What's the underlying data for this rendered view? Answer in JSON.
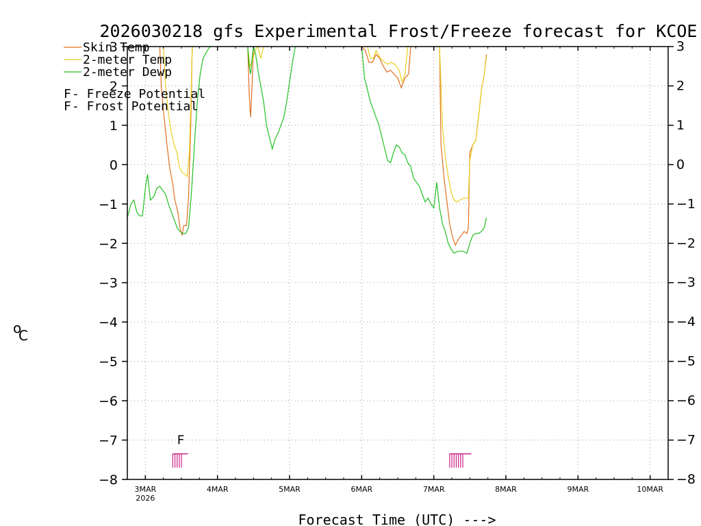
{
  "chart_data": {
    "type": "line",
    "title": "2026030218 gfs Experimental Frost/Freeze forecast for KCOE",
    "ylabel_unit": "°C",
    "ylabel_prefix": "o",
    "ylabel_main": "C",
    "xlabel": "Forecast Time (UTC) --->",
    "ylim": [
      -8,
      3
    ],
    "yticks": [
      3,
      2,
      1,
      0,
      -1,
      -2,
      -3,
      -4,
      -5,
      -6,
      -7,
      -8
    ],
    "ytick_labels": [
      "3",
      "2",
      "1",
      "0",
      "−1",
      "−2",
      "−3",
      "−4",
      "−5",
      "−6",
      "−7",
      "−8"
    ],
    "xlim": [
      -0.25,
      7.25
    ],
    "xticks": [
      {
        "x": 0,
        "label": "3MAR",
        "sub": "2026"
      },
      {
        "x": 1,
        "label": "4MAR",
        "sub": ""
      },
      {
        "x": 2,
        "label": "5MAR",
        "sub": ""
      },
      {
        "x": 3,
        "label": "6MAR",
        "sub": ""
      },
      {
        "x": 4,
        "label": "7MAR",
        "sub": ""
      },
      {
        "x": 5,
        "label": "8MAR",
        "sub": ""
      },
      {
        "x": 6,
        "label": "9MAR",
        "sub": ""
      },
      {
        "x": 7,
        "label": "10MAR",
        "sub": ""
      }
    ],
    "legend": [
      {
        "name": "Skin Temp",
        "color": "#e07020"
      },
      {
        "name": "2-meter Temp",
        "color": "#e8d020"
      },
      {
        "name": "2-meter Dewp",
        "color": "#20c020"
      }
    ],
    "potential_legend": [
      {
        "letter": "F",
        "text": " - Freeze Potential",
        "color": "#cc2288"
      },
      {
        "letter": "F",
        "text": " - Frost Potential",
        "color": "#4466dd"
      }
    ],
    "frost_marker": {
      "letter": "F",
      "x": 0.49,
      "y": -7.1
    },
    "freeze_markers": [
      {
        "x_start": 0.38,
        "x_end": 0.59
      },
      {
        "x_start": 4.22,
        "x_end": 4.52
      }
    ],
    "series": [
      {
        "name": "Skin Temp",
        "color": "#e07020",
        "segments": [
          [
            [
              0.2,
              3
            ],
            [
              0.22,
              2.0
            ],
            [
              0.26,
              1.2
            ],
            [
              0.3,
              0.5
            ],
            [
              0.34,
              -0.1
            ],
            [
              0.38,
              -0.5
            ],
            [
              0.41,
              -0.9
            ],
            [
              0.45,
              -1.2
            ],
            [
              0.48,
              -1.6
            ],
            [
              0.51,
              -1.8
            ],
            [
              0.53,
              -1.55
            ],
            [
              0.57,
              -1.55
            ],
            [
              0.6,
              -0.8
            ],
            [
              0.63,
              1.0
            ],
            [
              0.65,
              3
            ]
          ],
          [
            [
              1.42,
              3
            ],
            [
              1.44,
              1.8
            ],
            [
              1.46,
              1.2
            ],
            [
              1.48,
              2.0
            ],
            [
              1.5,
              3
            ]
          ],
          [
            [
              3.0,
              3
            ],
            [
              3.05,
              2.9
            ],
            [
              3.1,
              2.6
            ],
            [
              3.15,
              2.6
            ],
            [
              3.2,
              2.8
            ],
            [
              3.25,
              2.7
            ],
            [
              3.3,
              2.5
            ],
            [
              3.35,
              2.35
            ],
            [
              3.4,
              2.4
            ],
            [
              3.45,
              2.3
            ],
            [
              3.5,
              2.2
            ],
            [
              3.55,
              1.95
            ],
            [
              3.6,
              2.2
            ],
            [
              3.65,
              2.3
            ],
            [
              3.68,
              3
            ]
          ],
          [
            [
              4.08,
              3
            ],
            [
              4.1,
              0.5
            ],
            [
              4.14,
              -0.3
            ],
            [
              4.18,
              -0.9
            ],
            [
              4.22,
              -1.5
            ],
            [
              4.26,
              -1.85
            ],
            [
              4.3,
              -2.05
            ],
            [
              4.34,
              -1.9
            ],
            [
              4.38,
              -1.8
            ],
            [
              4.42,
              -1.7
            ],
            [
              4.46,
              -1.75
            ],
            [
              4.48,
              -1.6
            ],
            [
              4.5,
              0.3
            ],
            [
              4.54,
              0.5
            ],
            [
              4.58,
              0.6
            ],
            [
              4.62,
              1.2
            ],
            [
              4.66,
              1.9
            ],
            [
              4.7,
              2.3
            ],
            [
              4.73,
              2.8
            ]
          ]
        ]
      },
      {
        "name": "2-meter Temp",
        "color": "#e8d020",
        "segments": [
          [
            [
              0.25,
              3
            ],
            [
              0.28,
              2.0
            ],
            [
              0.32,
              1.3
            ],
            [
              0.36,
              0.8
            ],
            [
              0.4,
              0.5
            ],
            [
              0.44,
              0.3
            ],
            [
              0.47,
              -0.05
            ],
            [
              0.51,
              -0.2
            ],
            [
              0.55,
              -0.25
            ],
            [
              0.58,
              -0.3
            ],
            [
              0.61,
              0.3
            ],
            [
              0.63,
              1.5
            ],
            [
              0.65,
              3
            ]
          ],
          [
            [
              1.42,
              3
            ],
            [
              1.45,
              2.5
            ],
            [
              1.48,
              2.6
            ],
            [
              1.52,
              2.9
            ],
            [
              1.56,
              3
            ],
            [
              1.6,
              2.7
            ],
            [
              1.64,
              3
            ]
          ],
          [
            [
              3.08,
              3
            ],
            [
              3.12,
              2.7
            ],
            [
              3.16,
              2.7
            ],
            [
              3.2,
              2.9
            ],
            [
              3.26,
              2.7
            ],
            [
              3.32,
              2.6
            ],
            [
              3.36,
              2.55
            ],
            [
              3.4,
              2.6
            ],
            [
              3.46,
              2.55
            ],
            [
              3.52,
              2.4
            ],
            [
              3.56,
              2.1
            ],
            [
              3.6,
              2.3
            ],
            [
              3.64,
              3
            ]
          ],
          [
            [
              4.08,
              3
            ],
            [
              4.12,
              1.0
            ],
            [
              4.16,
              0.2
            ],
            [
              4.2,
              -0.3
            ],
            [
              4.24,
              -0.7
            ],
            [
              4.28,
              -0.9
            ],
            [
              4.32,
              -0.95
            ],
            [
              4.36,
              -0.9
            ],
            [
              4.42,
              -0.85
            ],
            [
              4.48,
              -0.85
            ],
            [
              4.5,
              0.1
            ],
            [
              4.54,
              0.5
            ],
            [
              4.58,
              0.6
            ],
            [
              4.62,
              1.2
            ],
            [
              4.66,
              1.9
            ],
            [
              4.7,
              2.3
            ],
            [
              4.73,
              2.75
            ]
          ]
        ]
      },
      {
        "name": "2-meter Dewp",
        "color": "#20c020",
        "segments": [
          [
            [
              -0.25,
              -1.35
            ],
            [
              -0.2,
              -1.0
            ],
            [
              -0.16,
              -0.9
            ],
            [
              -0.12,
              -1.2
            ],
            [
              -0.08,
              -1.3
            ],
            [
              -0.04,
              -1.3
            ],
            [
              0.0,
              -0.6
            ],
            [
              0.03,
              -0.25
            ],
            [
              0.07,
              -0.9
            ],
            [
              0.12,
              -0.8
            ],
            [
              0.16,
              -0.6
            ],
            [
              0.2,
              -0.55
            ],
            [
              0.24,
              -0.65
            ],
            [
              0.28,
              -0.75
            ],
            [
              0.32,
              -1.0
            ],
            [
              0.36,
              -1.2
            ],
            [
              0.4,
              -1.4
            ],
            [
              0.44,
              -1.6
            ],
            [
              0.48,
              -1.7
            ],
            [
              0.52,
              -1.75
            ],
            [
              0.56,
              -1.75
            ],
            [
              0.6,
              -1.6
            ],
            [
              0.64,
              -0.7
            ],
            [
              0.68,
              0.5
            ],
            [
              0.72,
              1.6
            ],
            [
              0.76,
              2.3
            ],
            [
              0.8,
              2.7
            ],
            [
              0.86,
              2.9
            ],
            [
              0.9,
              3
            ]
          ],
          [
            [
              1.42,
              3
            ],
            [
              1.44,
              2.5
            ],
            [
              1.46,
              2.3
            ],
            [
              1.48,
              2.7
            ],
            [
              1.5,
              3
            ],
            [
              1.53,
              2.8
            ],
            [
              1.56,
              2.4
            ],
            [
              1.6,
              2.0
            ],
            [
              1.64,
              1.6
            ],
            [
              1.68,
              1.0
            ],
            [
              1.72,
              0.7
            ],
            [
              1.76,
              0.4
            ],
            [
              1.8,
              0.65
            ],
            [
              1.84,
              0.8
            ],
            [
              1.88,
              1.0
            ],
            [
              1.92,
              1.2
            ],
            [
              1.96,
              1.6
            ],
            [
              2.0,
              2.1
            ],
            [
              2.04,
              2.6
            ],
            [
              2.08,
              3
            ]
          ],
          [
            [
              3.0,
              3
            ],
            [
              3.04,
              2.2
            ],
            [
              3.08,
              1.9
            ],
            [
              3.12,
              1.6
            ],
            [
              3.16,
              1.4
            ],
            [
              3.2,
              1.2
            ],
            [
              3.24,
              1.0
            ],
            [
              3.28,
              0.7
            ],
            [
              3.32,
              0.4
            ],
            [
              3.36,
              0.1
            ],
            [
              3.4,
              0.05
            ],
            [
              3.44,
              0.3
            ],
            [
              3.48,
              0.5
            ],
            [
              3.52,
              0.45
            ],
            [
              3.56,
              0.3
            ],
            [
              3.6,
              0.25
            ],
            [
              3.64,
              0.05
            ],
            [
              3.68,
              -0.05
            ],
            [
              3.72,
              -0.35
            ],
            [
              3.76,
              -0.45
            ],
            [
              3.8,
              -0.55
            ],
            [
              3.84,
              -0.75
            ],
            [
              3.88,
              -0.95
            ],
            [
              3.92,
              -0.85
            ],
            [
              3.96,
              -1.0
            ],
            [
              4.0,
              -1.1
            ],
            [
              4.04,
              -0.45
            ],
            [
              4.08,
              -1.1
            ],
            [
              4.12,
              -1.5
            ],
            [
              4.16,
              -1.7
            ],
            [
              4.2,
              -2.0
            ],
            [
              4.24,
              -2.15
            ],
            [
              4.28,
              -2.25
            ],
            [
              4.34,
              -2.2
            ],
            [
              4.4,
              -2.2
            ],
            [
              4.46,
              -2.25
            ],
            [
              4.5,
              -2.0
            ],
            [
              4.54,
              -1.8
            ],
            [
              4.58,
              -1.75
            ],
            [
              4.62,
              -1.75
            ],
            [
              4.66,
              -1.7
            ],
            [
              4.7,
              -1.6
            ],
            [
              4.73,
              -1.35
            ]
          ]
        ]
      }
    ]
  }
}
